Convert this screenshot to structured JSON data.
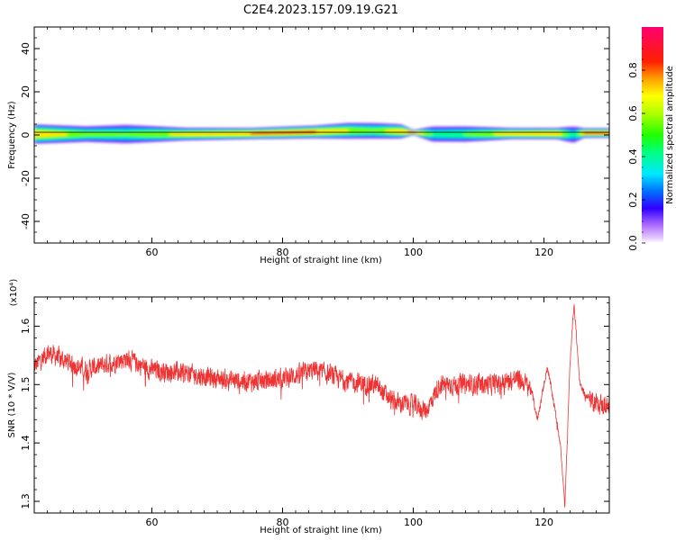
{
  "title": "C2E4.2023.157.09.19.G21",
  "chart_data": [
    {
      "type": "heatmap",
      "name": "spectrogram",
      "xlabel": "Height of straight line (km)",
      "ylabel": "Frequency (Hz)",
      "xlim": [
        42,
        130
      ],
      "ylim": [
        -50,
        50
      ],
      "xticks": [
        60,
        80,
        100,
        120
      ],
      "yticks": [
        -40,
        -20,
        0,
        20,
        40
      ],
      "colorbar": {
        "label": "Normalized spectral amplitude",
        "range": [
          0,
          1
        ],
        "ticks": [
          "0.0",
          "0.2",
          "0.4",
          "0.6",
          "0.8"
        ],
        "colormap": "hsv-rainbow"
      },
      "band": [
        {
          "x": 42,
          "low": -2.5,
          "high": 3.5,
          "peak": 0.85
        },
        {
          "x": 50,
          "low": -2.0,
          "high": 3.0,
          "peak": 0.6
        },
        {
          "x": 56,
          "low": -2.5,
          "high": 3.5,
          "peak": 0.55
        },
        {
          "x": 65,
          "low": -1.5,
          "high": 2.5,
          "peak": 0.75
        },
        {
          "x": 75,
          "low": -1.0,
          "high": 2.5,
          "peak": 0.85
        },
        {
          "x": 85,
          "low": -0.5,
          "high": 3.5,
          "peak": 0.85
        },
        {
          "x": 90,
          "low": -0.5,
          "high": 4.5,
          "peak": 0.7
        },
        {
          "x": 94,
          "low": -0.5,
          "high": 4.5,
          "peak": 0.6
        },
        {
          "x": 98,
          "low": -0.5,
          "high": 4.0,
          "peak": 0.8
        },
        {
          "x": 100,
          "low": 0.5,
          "high": 2.0,
          "peak": 0.9
        },
        {
          "x": 103,
          "low": -2.0,
          "high": 3.0,
          "peak": 0.5
        },
        {
          "x": 108,
          "low": -2.0,
          "high": 3.0,
          "peak": 0.55
        },
        {
          "x": 115,
          "low": -1.0,
          "high": 2.5,
          "peak": 0.8
        },
        {
          "x": 122,
          "low": -1.0,
          "high": 2.5,
          "peak": 0.85
        },
        {
          "x": 124.5,
          "low": -2.5,
          "high": 3.0,
          "peak": 0.4
        },
        {
          "x": 126,
          "low": -0.5,
          "high": 2.5,
          "peak": 0.85
        },
        {
          "x": 130,
          "low": -0.5,
          "high": 2.5,
          "peak": 0.85
        }
      ]
    },
    {
      "type": "line",
      "name": "snr",
      "xlabel": "Height of straight line (km)",
      "ylabel": "SNR (10 * V/V)",
      "y_multiplier": "(x10⁴)",
      "xlim": [
        42,
        130
      ],
      "ylim": [
        12800,
        16500
      ],
      "xticks": [
        60,
        80,
        100,
        120
      ],
      "yticks": [
        13000,
        14000,
        15000,
        16000
      ],
      "ytick_labels": [
        "1.3",
        "1.4",
        "1.5",
        "1.6"
      ],
      "color": "#ee3333",
      "noise_amplitude": 250,
      "trend": [
        {
          "x": 42,
          "y": 15300
        },
        {
          "x": 44,
          "y": 15550
        },
        {
          "x": 46,
          "y": 15450
        },
        {
          "x": 50,
          "y": 15250
        },
        {
          "x": 56,
          "y": 15450
        },
        {
          "x": 60,
          "y": 15250
        },
        {
          "x": 65,
          "y": 15200
        },
        {
          "x": 70,
          "y": 15100
        },
        {
          "x": 76,
          "y": 15050
        },
        {
          "x": 80,
          "y": 15100
        },
        {
          "x": 85,
          "y": 15250
        },
        {
          "x": 90,
          "y": 15050
        },
        {
          "x": 94,
          "y": 15000
        },
        {
          "x": 97,
          "y": 14700
        },
        {
          "x": 100,
          "y": 14650
        },
        {
          "x": 102,
          "y": 14550
        },
        {
          "x": 104,
          "y": 15000
        },
        {
          "x": 108,
          "y": 15000
        },
        {
          "x": 112,
          "y": 15000
        },
        {
          "x": 116,
          "y": 15100
        },
        {
          "x": 118,
          "y": 14950
        },
        {
          "x": 119,
          "y": 14400
        },
        {
          "x": 120.5,
          "y": 15300
        },
        {
          "x": 121.5,
          "y": 14700
        },
        {
          "x": 122.5,
          "y": 14000
        },
        {
          "x": 123.2,
          "y": 12900
        },
        {
          "x": 124,
          "y": 15400
        },
        {
          "x": 124.6,
          "y": 16400
        },
        {
          "x": 125.5,
          "y": 15000
        },
        {
          "x": 126.5,
          "y": 14800
        },
        {
          "x": 128,
          "y": 14700
        },
        {
          "x": 130,
          "y": 14600
        }
      ]
    }
  ]
}
